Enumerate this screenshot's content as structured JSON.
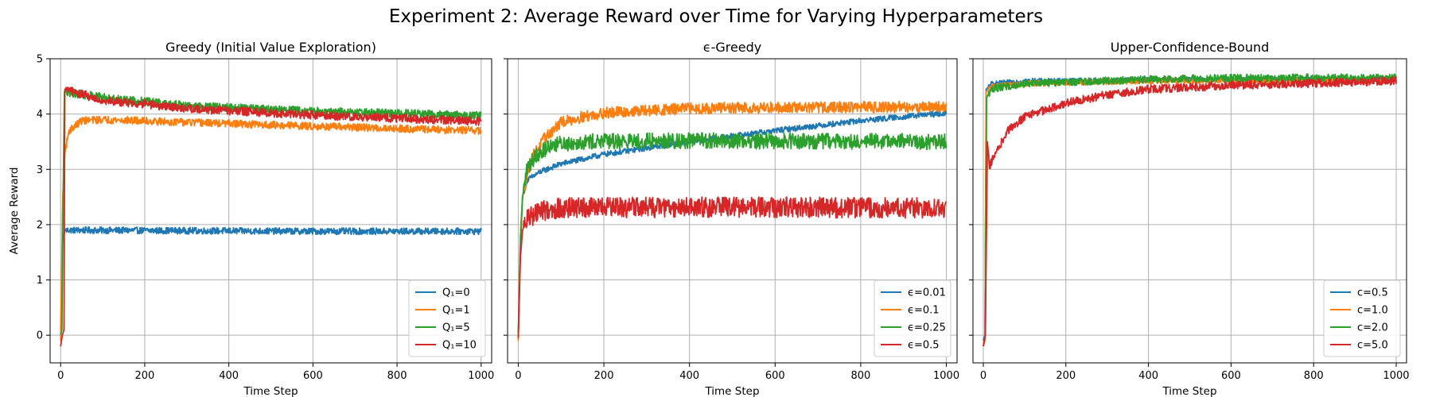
{
  "figure": {
    "title": "Experiment 2: Average Reward over Time for Varying Hyperparameters"
  },
  "chart_data": [
    {
      "type": "line",
      "title": "Greedy (Initial Value Exploration)",
      "xlabel": "Time Step",
      "ylabel": "Average Reward",
      "xlim": [
        -25,
        1025
      ],
      "ylim": [
        -0.5,
        5
      ],
      "xticks": [
        0,
        200,
        400,
        600,
        800,
        1000
      ],
      "yticks": [
        0,
        1,
        2,
        3,
        4,
        5
      ],
      "grid": true,
      "legend_position": "lower-right",
      "series": [
        {
          "name": "Q₁=0",
          "color": "#1f77b4",
          "noise": 0.035,
          "points": [
            [
              0,
              0.1
            ],
            [
              5,
              1.7
            ],
            [
              10,
              1.9
            ],
            [
              50,
              1.9
            ],
            [
              300,
              1.89
            ],
            [
              600,
              1.88
            ],
            [
              1000,
              1.88
            ]
          ]
        },
        {
          "name": "Q₁=1",
          "color": "#ff7f0e",
          "noise": 0.04,
          "points": [
            [
              0,
              -0.1
            ],
            [
              5,
              2.5
            ],
            [
              10,
              3.3
            ],
            [
              20,
              3.7
            ],
            [
              50,
              3.88
            ],
            [
              100,
              3.9
            ],
            [
              300,
              3.85
            ],
            [
              600,
              3.78
            ],
            [
              1000,
              3.7
            ]
          ]
        },
        {
          "name": "Q₁=5",
          "color": "#2ca02c",
          "noise": 0.045,
          "points": [
            [
              0,
              0.0
            ],
            [
              3,
              0.1
            ],
            [
              6,
              2.5
            ],
            [
              9,
              4.4
            ],
            [
              30,
              4.38
            ],
            [
              100,
              4.3
            ],
            [
              300,
              4.15
            ],
            [
              600,
              4.05
            ],
            [
              1000,
              3.97
            ]
          ]
        },
        {
          "name": "Q₁=10",
          "color": "#d62728",
          "noise": 0.045,
          "points": [
            [
              0,
              -0.2
            ],
            [
              4,
              0.0
            ],
            [
              8,
              0.1
            ],
            [
              10,
              4.45
            ],
            [
              30,
              4.4
            ],
            [
              100,
              4.25
            ],
            [
              300,
              4.1
            ],
            [
              600,
              3.98
            ],
            [
              1000,
              3.87
            ]
          ]
        }
      ]
    },
    {
      "type": "line",
      "title": "ϵ-Greedy",
      "xlabel": "Time Step",
      "ylabel": "",
      "xlim": [
        -25,
        1025
      ],
      "ylim": [
        -0.5,
        5
      ],
      "xticks": [
        0,
        200,
        400,
        600,
        800,
        1000
      ],
      "yticks": [
        0,
        1,
        2,
        3,
        4,
        5
      ],
      "grid": true,
      "legend_position": "lower-right",
      "series": [
        {
          "name": "ϵ=0.01",
          "color": "#1f77b4",
          "noise": 0.03,
          "points": [
            [
              0,
              0.0
            ],
            [
              5,
              1.8
            ],
            [
              10,
              2.5
            ],
            [
              20,
              2.8
            ],
            [
              50,
              2.95
            ],
            [
              100,
              3.1
            ],
            [
              200,
              3.27
            ],
            [
              400,
              3.5
            ],
            [
              600,
              3.7
            ],
            [
              800,
              3.88
            ],
            [
              1000,
              4.02
            ]
          ]
        },
        {
          "name": "ϵ=0.1",
          "color": "#ff7f0e",
          "noise": 0.06,
          "points": [
            [
              0,
              -0.1
            ],
            [
              5,
              1.8
            ],
            [
              10,
              2.5
            ],
            [
              30,
              3.2
            ],
            [
              60,
              3.55
            ],
            [
              100,
              3.85
            ],
            [
              150,
              3.95
            ],
            [
              200,
              4.02
            ],
            [
              400,
              4.1
            ],
            [
              600,
              4.12
            ],
            [
              1000,
              4.13
            ]
          ]
        },
        {
          "name": "ϵ=0.25",
          "color": "#2ca02c",
          "noise": 0.085,
          "points": [
            [
              0,
              -0.05
            ],
            [
              5,
              1.6
            ],
            [
              10,
              2.5
            ],
            [
              20,
              3.0
            ],
            [
              40,
              3.25
            ],
            [
              80,
              3.45
            ],
            [
              150,
              3.5
            ],
            [
              400,
              3.52
            ],
            [
              1000,
              3.5
            ]
          ]
        },
        {
          "name": "ϵ=0.5",
          "color": "#d62728",
          "noise": 0.11,
          "points": [
            [
              0,
              -0.05
            ],
            [
              5,
              1.4
            ],
            [
              10,
              1.9
            ],
            [
              20,
              2.1
            ],
            [
              50,
              2.25
            ],
            [
              100,
              2.3
            ],
            [
              400,
              2.32
            ],
            [
              1000,
              2.3
            ]
          ]
        }
      ]
    },
    {
      "type": "line",
      "title": "Upper-Confidence-Bound",
      "xlabel": "Time Step",
      "ylabel": "",
      "xlim": [
        -25,
        1025
      ],
      "ylim": [
        -0.5,
        5
      ],
      "xticks": [
        0,
        200,
        400,
        600,
        800,
        1000
      ],
      "yticks": [
        0,
        1,
        2,
        3,
        4,
        5
      ],
      "grid": true,
      "legend_position": "lower-right",
      "series": [
        {
          "name": "c=0.5",
          "color": "#1f77b4",
          "noise": 0.025,
          "points": [
            [
              0,
              -0.1
            ],
            [
              4,
              0.0
            ],
            [
              7,
              4.45
            ],
            [
              20,
              4.55
            ],
            [
              100,
              4.6
            ],
            [
              400,
              4.62
            ],
            [
              1000,
              4.63
            ]
          ]
        },
        {
          "name": "c=1.0",
          "color": "#ff7f0e",
          "noise": 0.03,
          "points": [
            [
              0,
              -0.2
            ],
            [
              4,
              -0.1
            ],
            [
              7,
              4.4
            ],
            [
              20,
              4.5
            ],
            [
              100,
              4.55
            ],
            [
              400,
              4.6
            ],
            [
              1000,
              4.62
            ]
          ]
        },
        {
          "name": "c=2.0",
          "color": "#2ca02c",
          "noise": 0.04,
          "points": [
            [
              0,
              -0.2
            ],
            [
              5,
              0.0
            ],
            [
              8,
              4.3
            ],
            [
              20,
              4.45
            ],
            [
              100,
              4.55
            ],
            [
              400,
              4.63
            ],
            [
              600,
              4.65
            ],
            [
              1000,
              4.66
            ]
          ]
        },
        {
          "name": "c=5.0",
          "color": "#d62728",
          "noise": 0.045,
          "points": [
            [
              0,
              -0.2
            ],
            [
              5,
              0.0
            ],
            [
              10,
              3.5
            ],
            [
              15,
              3.05
            ],
            [
              30,
              3.3
            ],
            [
              60,
              3.7
            ],
            [
              100,
              3.95
            ],
            [
              200,
              4.2
            ],
            [
              300,
              4.35
            ],
            [
              400,
              4.45
            ],
            [
              600,
              4.52
            ],
            [
              800,
              4.56
            ],
            [
              1000,
              4.6
            ]
          ]
        }
      ]
    }
  ]
}
